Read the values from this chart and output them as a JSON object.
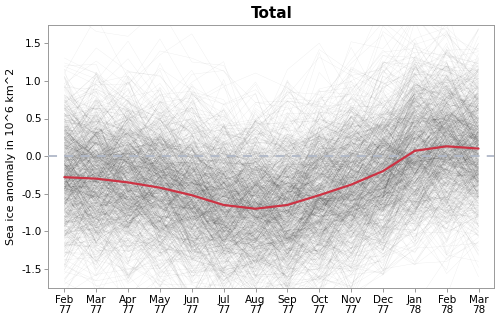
{
  "title": "Total",
  "ylabel": "Sea ice anomaly in 10^6 km^2",
  "ylim": [
    -1.75,
    1.75
  ],
  "yticks": [
    -1.5,
    -1.0,
    -0.5,
    0.0,
    0.5,
    1.0,
    1.5
  ],
  "ytick_labels": [
    "-1.5",
    "-1.0",
    "-0.5",
    "0.0",
    "0.5",
    "1.0",
    "1.5"
  ],
  "xtick_positions": [
    0,
    1,
    2,
    3,
    4,
    5,
    6,
    7,
    8,
    9,
    10,
    11,
    12,
    13
  ],
  "xtick_labels": [
    "Feb\n77",
    "Mar\n77",
    "Apr\n77",
    "May\n77",
    "Jun\n77",
    "Jul\n77",
    "Aug\n77",
    "Sep\n77",
    "Oct\n77",
    "Nov\n77",
    "Dec\n77",
    "Jan\n78",
    "Feb\n78",
    "Mar\n78"
  ],
  "red_line": [
    -0.28,
    -0.3,
    -0.35,
    -0.42,
    -0.52,
    -0.65,
    -0.7,
    -0.65,
    -0.52,
    -0.38,
    -0.2,
    0.07,
    0.13,
    0.1
  ],
  "n_samples": 800,
  "sample_alpha": 0.07,
  "sample_color": "#000000",
  "red_color": "#cc3344",
  "dashed_color": "#b0b8c8",
  "background_color": "#ffffff",
  "title_fontsize": 11,
  "label_fontsize": 8,
  "tick_fontsize": 7.5,
  "spine_color": "#999999",
  "mean_spread": 0.42,
  "jagged_std": 0.32
}
